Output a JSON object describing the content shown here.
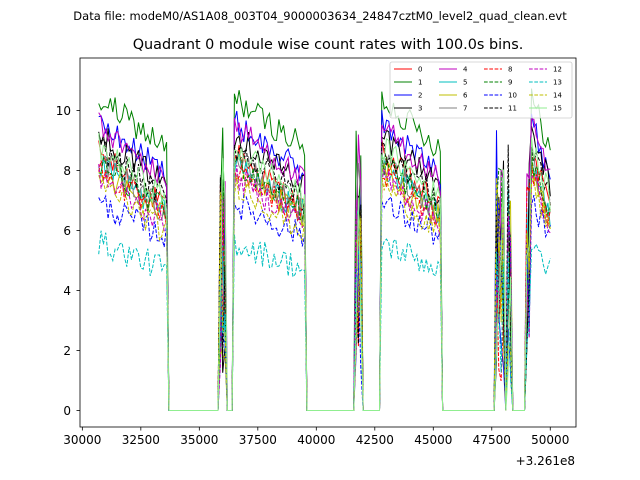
{
  "chart_data": {
    "type": "line",
    "suptitle": "Data file: modeM0/AS1A08_003T04_9000003634_24847cztM0_level2_quad_clean.evt",
    "title": "Quadrant 0 module wise count rates with 100.0s bins.",
    "xlabel": "",
    "ylabel": "",
    "x_offset_label": "+3.261e8",
    "xlim": [
      29900,
      51100
    ],
    "ylim": [
      -0.55,
      11.75
    ],
    "x_ticks": [
      30000,
      32500,
      35000,
      37500,
      40000,
      42500,
      45000,
      47500,
      50000
    ],
    "x_tick_labels": [
      "30000",
      "32500",
      "35000",
      "37500",
      "40000",
      "42500",
      "45000",
      "47500",
      "50000"
    ],
    "y_ticks": [
      0,
      2,
      4,
      6,
      8,
      10
    ],
    "y_tick_labels": [
      "0",
      "2",
      "4",
      "6",
      "8",
      "10"
    ],
    "bin_seconds": 100,
    "segments": [
      {
        "start": 30700,
        "end": 33600,
        "shape": "decay"
      },
      {
        "start": 35900,
        "end": 36100,
        "shape": "spike"
      },
      {
        "start": 36500,
        "end": 39500,
        "shape": "decay"
      },
      {
        "start": 41700,
        "end": 41900,
        "shape": "spike"
      },
      {
        "start": 42800,
        "end": 45300,
        "shape": "decay"
      },
      {
        "start": 47700,
        "end": 48000,
        "shape": "spike"
      },
      {
        "start": 48200,
        "end": 48300,
        "shape": "spike"
      },
      {
        "start": 49000,
        "end": 49100,
        "shape": "spike"
      },
      {
        "start": 49200,
        "end": 50000,
        "shape": "decay"
      }
    ],
    "series": [
      {
        "name": "0",
        "color": "#ff0000",
        "dash": "solid",
        "level": 8.6,
        "drop": 0.22
      },
      {
        "name": "1",
        "color": "#008000",
        "dash": "solid",
        "level": 10.4,
        "drop": 0.16
      },
      {
        "name": "2",
        "color": "#0000ff",
        "dash": "solid",
        "level": 9.6,
        "drop": 0.18
      },
      {
        "name": "3",
        "color": "#000000",
        "dash": "solid",
        "level": 9.2,
        "drop": 0.18
      },
      {
        "name": "4",
        "color": "#bf00bf",
        "dash": "solid",
        "level": 9.5,
        "drop": 0.2
      },
      {
        "name": "5",
        "color": "#00bfbf",
        "dash": "solid",
        "level": 8.2,
        "drop": 0.2
      },
      {
        "name": "6",
        "color": "#bfbf00",
        "dash": "solid",
        "level": 8.0,
        "drop": 0.2
      },
      {
        "name": "7",
        "color": "#808080",
        "dash": "solid",
        "level": 8.4,
        "drop": 0.22
      },
      {
        "name": "8",
        "color": "#ff0000",
        "dash": "dashed",
        "level": 8.0,
        "drop": 0.2
      },
      {
        "name": "9",
        "color": "#008000",
        "dash": "dashed",
        "level": 8.3,
        "drop": 0.2
      },
      {
        "name": "10",
        "color": "#0000ff",
        "dash": "dashed",
        "level": 6.9,
        "drop": 0.16
      },
      {
        "name": "11",
        "color": "#000000",
        "dash": "dashed",
        "level": 8.8,
        "drop": 0.2
      },
      {
        "name": "12",
        "color": "#bf00bf",
        "dash": "dashed",
        "level": 7.8,
        "drop": 0.2
      },
      {
        "name": "13",
        "color": "#00bfbf",
        "dash": "dashed",
        "level": 5.6,
        "drop": 0.16
      },
      {
        "name": "14",
        "color": "#bfbf00",
        "dash": "dashed",
        "level": 7.6,
        "drop": 0.22
      },
      {
        "name": "15",
        "color": "#90ee90",
        "dash": "solid",
        "level": 8.8,
        "drop": 0.2
      }
    ],
    "legend_location": "upper right",
    "legend_columns": 4,
    "grid": false
  }
}
